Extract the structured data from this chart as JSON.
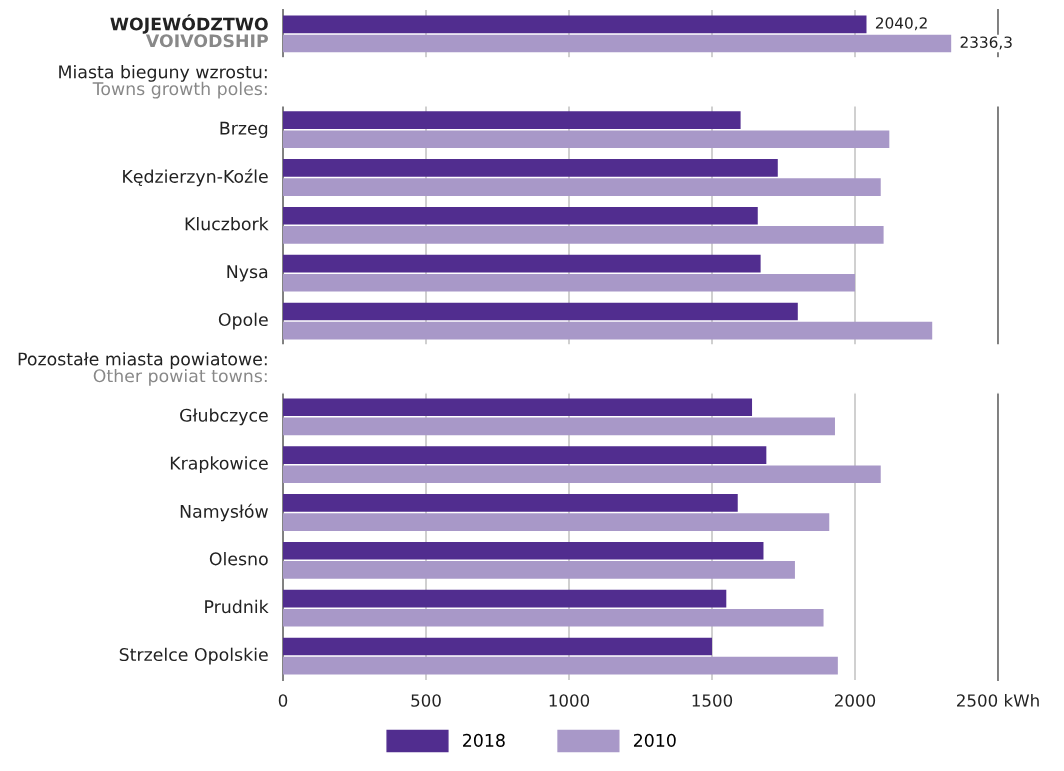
{
  "chart_data": {
    "type": "bar",
    "orientation": "horizontal",
    "categories": [
      "WOJEWÓDZTWO\nVOIVODSHIP",
      null,
      "Brzeg",
      "Kędzierzyn-Koźle",
      "Kluczbork",
      "Nysa",
      "Opole",
      null,
      "Głubczyce",
      "Krapkowice",
      "Namysłów",
      "Olesno",
      "Prudnik",
      "Strzelce Opolskie"
    ],
    "series": [
      {
        "name": "2018",
        "color": "#512d8f",
        "values": [
          2040.2,
          null,
          1600,
          1730,
          1660,
          1670,
          1800,
          null,
          1640,
          1690,
          1590,
          1680,
          1550,
          1500
        ],
        "value_labels": [
          "2040,2",
          null,
          null,
          null,
          null,
          null,
          null,
          null,
          null,
          null,
          null,
          null,
          null,
          null
        ]
      },
      {
        "name": "2010",
        "color": "#a898c8",
        "values": [
          2336.3,
          null,
          2120,
          2090,
          2100,
          2000,
          2270,
          null,
          1930,
          2090,
          1910,
          1790,
          1890,
          1940
        ],
        "value_labels": [
          "2336,3",
          null,
          null,
          null,
          null,
          null,
          null,
          null,
          null,
          null,
          null,
          null,
          null,
          null
        ]
      }
    ],
    "xlim": [
      0,
      2500
    ],
    "xticks": [
      0,
      500,
      1000,
      1500,
      2000,
      {
        "value": 2500,
        "label": "2500 kWh"
      }
    ],
    "annotations": [
      "Miasta bieguny wzrostu:\nTowns growth poles:",
      "Pozostałe miasta powiatowe:\nOther powiat towns:"
    ],
    "grid": "x",
    "legend": "bottom"
  }
}
